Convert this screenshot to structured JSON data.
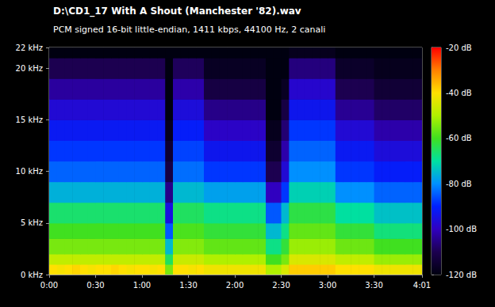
{
  "chart_data": {
    "type": "heatmap",
    "title": "D:\\CD1_17 With A Shout (Manchester '82).wav",
    "subtitle": "PCM signed 16-bit little-endian, 1411 kbps, 44100 Hz, 2 canali",
    "x_bins": [
      0,
      5,
      10,
      15,
      20,
      25,
      30,
      35,
      40,
      45,
      50,
      55,
      60,
      65,
      70,
      75,
      80,
      85,
      90,
      95,
      100,
      105,
      110,
      115,
      120,
      125,
      130,
      135,
      140,
      145,
      150,
      155,
      160,
      165,
      170,
      175,
      180,
      185,
      190,
      195,
      200,
      205,
      210,
      215,
      220,
      225,
      230,
      235,
      240,
      241
    ],
    "y_bins": [
      0,
      1,
      2,
      3.5,
      5,
      7,
      9,
      11,
      13,
      15,
      17,
      19,
      21,
      22
    ],
    "cells": [
      [
        -40,
        -41,
        -40,
        -39,
        -40,
        -41,
        -40,
        -40,
        -39,
        -40,
        -41,
        -40,
        -40,
        -41,
        -40,
        -55,
        -40,
        -40,
        -41,
        -40,
        -42,
        -42,
        -42,
        -42,
        -42,
        -42,
        -42,
        -42,
        -50,
        -50,
        -45,
        -38,
        -38,
        -38,
        -38,
        -38,
        -38,
        -40,
        -40,
        -40,
        -40,
        -40,
        -42,
        -42,
        -42,
        -42,
        -42,
        -42,
        -42
      ],
      [
        -48,
        -48,
        -48,
        -48,
        -48,
        -48,
        -48,
        -48,
        -48,
        -48,
        -48,
        -48,
        -48,
        -48,
        -48,
        -65,
        -47,
        -47,
        -47,
        -47,
        -50,
        -50,
        -50,
        -50,
        -50,
        -50,
        -50,
        -50,
        -60,
        -60,
        -55,
        -45,
        -45,
        -45,
        -45,
        -45,
        -45,
        -48,
        -48,
        -48,
        -48,
        -48,
        -52,
        -52,
        -52,
        -52,
        -52,
        -52,
        -52
      ],
      [
        -55,
        -55,
        -55,
        -55,
        -55,
        -55,
        -55,
        -55,
        -55,
        -55,
        -55,
        -55,
        -55,
        -55,
        -55,
        -75,
        -54,
        -54,
        -54,
        -54,
        -57,
        -57,
        -57,
        -57,
        -57,
        -57,
        -57,
        -57,
        -68,
        -68,
        -62,
        -52,
        -52,
        -52,
        -52,
        -52,
        -52,
        -56,
        -56,
        -56,
        -56,
        -56,
        -60,
        -60,
        -60,
        -60,
        -60,
        -60,
        -60
      ],
      [
        -60,
        -60,
        -60,
        -60,
        -60,
        -60,
        -60,
        -60,
        -60,
        -60,
        -60,
        -60,
        -60,
        -60,
        -60,
        -85,
        -59,
        -59,
        -59,
        -59,
        -62,
        -62,
        -62,
        -62,
        -62,
        -62,
        -62,
        -62,
        -75,
        -75,
        -68,
        -57,
        -57,
        -57,
        -57,
        -57,
        -57,
        -62,
        -62,
        -62,
        -62,
        -62,
        -67,
        -67,
        -67,
        -67,
        -67,
        -67,
        -67
      ],
      [
        -66,
        -66,
        -66,
        -66,
        -66,
        -66,
        -66,
        -66,
        -66,
        -66,
        -66,
        -66,
        -66,
        -66,
        -66,
        -95,
        -65,
        -65,
        -65,
        -65,
        -68,
        -68,
        -68,
        -68,
        -68,
        -68,
        -68,
        -68,
        -85,
        -85,
        -75,
        -63,
        -63,
        -63,
        -63,
        -63,
        -63,
        -70,
        -70,
        -70,
        -70,
        -70,
        -74,
        -74,
        -74,
        -74,
        -74,
        -74,
        -74
      ],
      [
        -76,
        -76,
        -76,
        -76,
        -76,
        -76,
        -76,
        -76,
        -76,
        -76,
        -76,
        -76,
        -76,
        -76,
        -76,
        -105,
        -75,
        -75,
        -75,
        -75,
        -78,
        -78,
        -78,
        -78,
        -78,
        -78,
        -78,
        -78,
        -100,
        -100,
        -88,
        -72,
        -72,
        -72,
        -72,
        -72,
        -72,
        -80,
        -80,
        -80,
        -80,
        -80,
        -84,
        -84,
        -84,
        -84,
        -84,
        -84,
        -84
      ],
      [
        -84,
        -84,
        -84,
        -84,
        -84,
        -84,
        -84,
        -84,
        -84,
        -84,
        -84,
        -84,
        -84,
        -84,
        -84,
        -112,
        -83,
        -83,
        -83,
        -83,
        -88,
        -88,
        -88,
        -88,
        -88,
        -88,
        -88,
        -88,
        -110,
        -110,
        -97,
        -80,
        -80,
        -80,
        -80,
        -80,
        -80,
        -88,
        -88,
        -88,
        -88,
        -88,
        -91,
        -91,
        -91,
        -91,
        -91,
        -91,
        -91
      ],
      [
        -88,
        -88,
        -88,
        -88,
        -88,
        -88,
        -88,
        -88,
        -88,
        -88,
        -88,
        -88,
        -88,
        -88,
        -88,
        -115,
        -87,
        -87,
        -87,
        -87,
        -93,
        -93,
        -93,
        -93,
        -93,
        -93,
        -93,
        -93,
        -115,
        -115,
        -102,
        -84,
        -84,
        -84,
        -84,
        -84,
        -84,
        -92,
        -92,
        -92,
        -92,
        -92,
        -96,
        -96,
        -96,
        -96,
        -96,
        -96,
        -96
      ],
      [
        -92,
        -92,
        -92,
        -92,
        -92,
        -92,
        -92,
        -92,
        -92,
        -92,
        -92,
        -92,
        -92,
        -92,
        -92,
        -118,
        -91,
        -91,
        -91,
        -91,
        -99,
        -99,
        -99,
        -99,
        -99,
        -99,
        -99,
        -99,
        -118,
        -118,
        -107,
        -88,
        -88,
        -88,
        -88,
        -88,
        -88,
        -97,
        -97,
        -97,
        -97,
        -97,
        -102,
        -102,
        -102,
        -102,
        -102,
        -102,
        -102
      ],
      [
        -97,
        -97,
        -97,
        -97,
        -97,
        -97,
        -97,
        -97,
        -97,
        -97,
        -97,
        -97,
        -97,
        -97,
        -97,
        -120,
        -96,
        -96,
        -96,
        -96,
        -105,
        -105,
        -105,
        -105,
        -105,
        -105,
        -105,
        -105,
        -120,
        -120,
        -112,
        -93,
        -93,
        -93,
        -93,
        -93,
        -93,
        -104,
        -104,
        -104,
        -104,
        -104,
        -108,
        -108,
        -108,
        -108,
        -108,
        -108,
        -108
      ],
      [
        -103,
        -103,
        -103,
        -103,
        -103,
        -103,
        -103,
        -103,
        -103,
        -103,
        -103,
        -103,
        -103,
        -103,
        -103,
        -120,
        -102,
        -102,
        -102,
        -102,
        -112,
        -112,
        -112,
        -112,
        -112,
        -112,
        -112,
        -112,
        -120,
        -120,
        -117,
        -98,
        -98,
        -98,
        -98,
        -98,
        -98,
        -110,
        -110,
        -110,
        -110,
        -110,
        -114,
        -114,
        -114,
        -114,
        -114,
        -114,
        -114
      ],
      [
        -110,
        -110,
        -110,
        -110,
        -110,
        -110,
        -110,
        -110,
        -110,
        -110,
        -110,
        -110,
        -110,
        -110,
        -110,
        -120,
        -109,
        -109,
        -109,
        -109,
        -117,
        -117,
        -117,
        -117,
        -117,
        -117,
        -117,
        -117,
        -120,
        -120,
        -120,
        -106,
        -106,
        -106,
        -106,
        -106,
        -106,
        -116,
        -116,
        -116,
        -116,
        -116,
        -118,
        -118,
        -118,
        -118,
        -118,
        -118,
        -118
      ],
      [
        -120,
        -120,
        -120,
        -120,
        -120,
        -120,
        -120,
        -120,
        -120,
        -120,
        -120,
        -120,
        -120,
        -120,
        -120,
        -120,
        -120,
        -120,
        -120,
        -120,
        -120,
        -120,
        -120,
        -120,
        -120,
        -120,
        -120,
        -120,
        -120,
        -120,
        -120,
        -118,
        -118,
        -118,
        -118,
        -118,
        -118,
        -120,
        -120,
        -120,
        -120,
        -120,
        -120,
        -120,
        -120,
        -120,
        -120,
        -120,
        -120
      ]
    ],
    "xlim": [
      0,
      241
    ],
    "xticks": [
      {
        "value": 0,
        "label": "0:00"
      },
      {
        "value": 30,
        "label": "0:30"
      },
      {
        "value": 60,
        "label": "1:00"
      },
      {
        "value": 90,
        "label": "1:30"
      },
      {
        "value": 120,
        "label": "2:00"
      },
      {
        "value": 150,
        "label": "2:30"
      },
      {
        "value": 180,
        "label": "3:00"
      },
      {
        "value": 210,
        "label": "3:30"
      },
      {
        "value": 241,
        "label": "4:01"
      }
    ],
    "ylim": [
      0,
      22
    ],
    "yticks": [
      {
        "value": 0,
        "label": "0 kHz"
      },
      {
        "value": 5,
        "label": "5 kHz"
      },
      {
        "value": 10,
        "label": "10 kHz"
      },
      {
        "value": 15,
        "label": "15 kHz"
      },
      {
        "value": 20,
        "label": "20 kHz"
      },
      {
        "value": 22,
        "label": "22 kHz"
      }
    ],
    "color_range": [
      -120,
      -20
    ],
    "color_ticks": [
      {
        "value": -120,
        "label": "-120 dB"
      },
      {
        "value": -100,
        "label": "-100 dB"
      },
      {
        "value": -80,
        "label": "-80 dB"
      },
      {
        "value": -60,
        "label": "-60 dB"
      },
      {
        "value": -40,
        "label": "-40 dB"
      },
      {
        "value": -20,
        "label": "-20 dB"
      }
    ]
  }
}
